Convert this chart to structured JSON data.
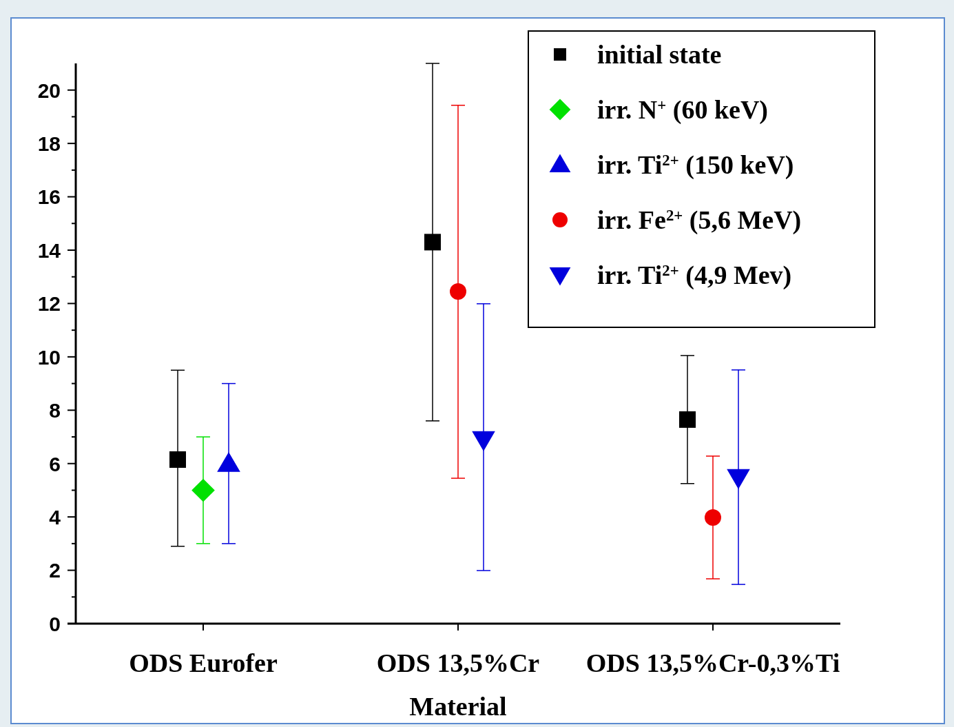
{
  "chart_data": {
    "type": "scatter",
    "xlabel": "Material",
    "categories": [
      "ODS Eurofer",
      "ODS 13,5%Cr",
      "ODS 13,5%Cr-0,3%Ti"
    ],
    "ylim": [
      0,
      21
    ],
    "yticks": [
      0,
      {
        "value": 1,
        "label": null
      },
      2,
      {
        "value": 3,
        "label": null
      },
      4,
      {
        "value": 5,
        "label": null
      },
      6,
      {
        "value": 7,
        "label": null
      },
      8,
      {
        "value": 9,
        "label": null
      },
      10,
      {
        "value": 11,
        "label": null
      },
      12,
      {
        "value": 13,
        "label": null
      },
      14,
      {
        "value": 15,
        "label": null
      },
      16,
      {
        "value": 17,
        "label": null
      },
      18,
      {
        "value": 19,
        "label": null
      },
      20
    ],
    "grid": false,
    "legend": "top right",
    "series": [
      {
        "name": "initial state",
        "color": "#000000",
        "marker": "square",
        "values": [
          6.15,
          14.3,
          7.65
        ],
        "errors": [
          [
            2.9,
            9.5
          ],
          [
            7.6,
            21.0
          ],
          [
            5.25,
            10.05
          ]
        ]
      },
      {
        "name": "irr. N$^{+}$ (60 keV)",
        "color": "#00e000",
        "marker": "diamond",
        "values": [
          5.0,
          null,
          null
        ],
        "errors": [
          [
            3.0,
            7.0
          ],
          null,
          null
        ]
      },
      {
        "name": "irr. Ti$^{2+}$ (150 keV)",
        "color": "#0000dd",
        "marker": "triangle",
        "values": [
          6.0,
          null,
          null
        ],
        "errors": [
          [
            3.0,
            9.0
          ],
          null,
          null
        ]
      },
      {
        "name": "irr. Fe$^{2+}$ (5,6 MeV)",
        "color": "#ee0000",
        "marker": "circle",
        "values": [
          null,
          12.45,
          3.98
        ],
        "errors": [
          null,
          [
            5.45,
            19.43
          ],
          [
            1.68,
            6.28
          ]
        ]
      },
      {
        "name": "irr. Ti$^{2+}$ (4,9 Mev)",
        "color": "#0000dd",
        "marker": "triangle-down",
        "values": [
          null,
          6.9,
          5.48
        ],
        "errors": [
          null,
          [
            1.99,
            11.99
          ],
          [
            1.47,
            9.51
          ]
        ]
      }
    ]
  }
}
